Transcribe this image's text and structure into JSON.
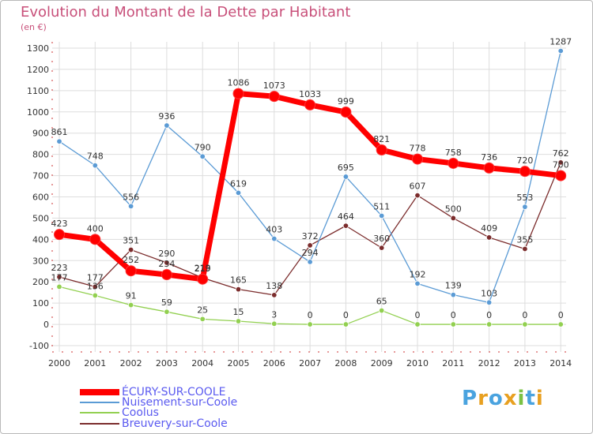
{
  "header": {
    "title": "Evolution du Montant de la Dette par Habitant",
    "unit": "(en €)"
  },
  "colors": {
    "title": "#c8507a",
    "legend_text": "#5a5af0",
    "axis_text": "#333333"
  },
  "legend": [
    {
      "label": "ÉCURY-SUR-COOLE",
      "color": "#ff0000",
      "thickness": 8
    },
    {
      "label": "Nuisement-sur-Coole",
      "color": "#5b9bd5",
      "thickness": 2
    },
    {
      "label": "Coolus",
      "color": "#92d050",
      "thickness": 2
    },
    {
      "label": "Breuvery-sur-Coole",
      "color": "#7b2c2c",
      "thickness": 2
    }
  ],
  "logo": {
    "text": "Proxiti",
    "letter_colors": [
      "#4aa3df",
      "#e8a020",
      "#4aa3df",
      "#e8a020",
      "#7ac143",
      "#4aa3df",
      "#e8a020"
    ]
  },
  "chart_data": {
    "type": "line",
    "title": "Evolution du Montant de la Dette par Habitant",
    "subtitle": "(en €)",
    "x": [
      "2000",
      "2001",
      "2002",
      "2003",
      "2004",
      "2005",
      "2006",
      "2007",
      "2008",
      "2009",
      "2010",
      "2011",
      "2012",
      "2013",
      "2014"
    ],
    "ylim": [
      -100,
      1300
    ],
    "yticks": [
      -100,
      0,
      100,
      200,
      300,
      400,
      500,
      600,
      700,
      800,
      900,
      1000,
      1100,
      1200,
      1300
    ],
    "grid": true,
    "legend_position": "bottom-left",
    "series": [
      {
        "name": "Coolus",
        "color": "#92d050",
        "thick": false,
        "values": [
          177,
          136,
          91,
          59,
          25,
          15,
          3,
          0,
          0,
          65,
          0,
          0,
          0,
          0,
          0
        ],
        "labels": [
          "177",
          "136",
          "91",
          "59",
          "25",
          "15",
          "3",
          "0",
          "0",
          "65",
          "0",
          "0",
          "0",
          "0",
          "0"
        ]
      },
      {
        "name": "Breuvery-sur-Coole",
        "color": "#7b2c2c",
        "thick": false,
        "values": [
          223,
          177,
          351,
          290,
          219,
          165,
          138,
          372,
          464,
          360,
          607,
          500,
          409,
          355,
          762
        ],
        "labels": [
          "223",
          "177",
          "351",
          "290",
          "219",
          "165",
          "138",
          "372",
          "464",
          "360",
          "607",
          "500",
          "409",
          "355",
          "762"
        ]
      },
      {
        "name": "Nuisement-sur-Coole",
        "color": "#5b9bd5",
        "thick": false,
        "values": [
          861,
          748,
          556,
          936,
          790,
          619,
          403,
          294,
          695,
          511,
          192,
          139,
          103,
          553,
          1287
        ],
        "labels": [
          "861",
          "748",
          "556",
          "936",
          "790",
          "619",
          "403",
          "294",
          "695",
          "511",
          "192",
          "139",
          "103",
          "553",
          "1287"
        ]
      },
      {
        "name": "ÉCURY-SUR-COOLE",
        "color": "#ff0000",
        "thick": true,
        "values": [
          423,
          400,
          252,
          234,
          213,
          1086,
          1073,
          1033,
          999,
          821,
          778,
          758,
          736,
          720,
          700
        ],
        "labels": [
          "423",
          "400",
          "252",
          "234",
          "213",
          "1086",
          "1073",
          "1033",
          "999",
          "821",
          "778",
          "758",
          "736",
          "720",
          "700"
        ]
      }
    ]
  }
}
